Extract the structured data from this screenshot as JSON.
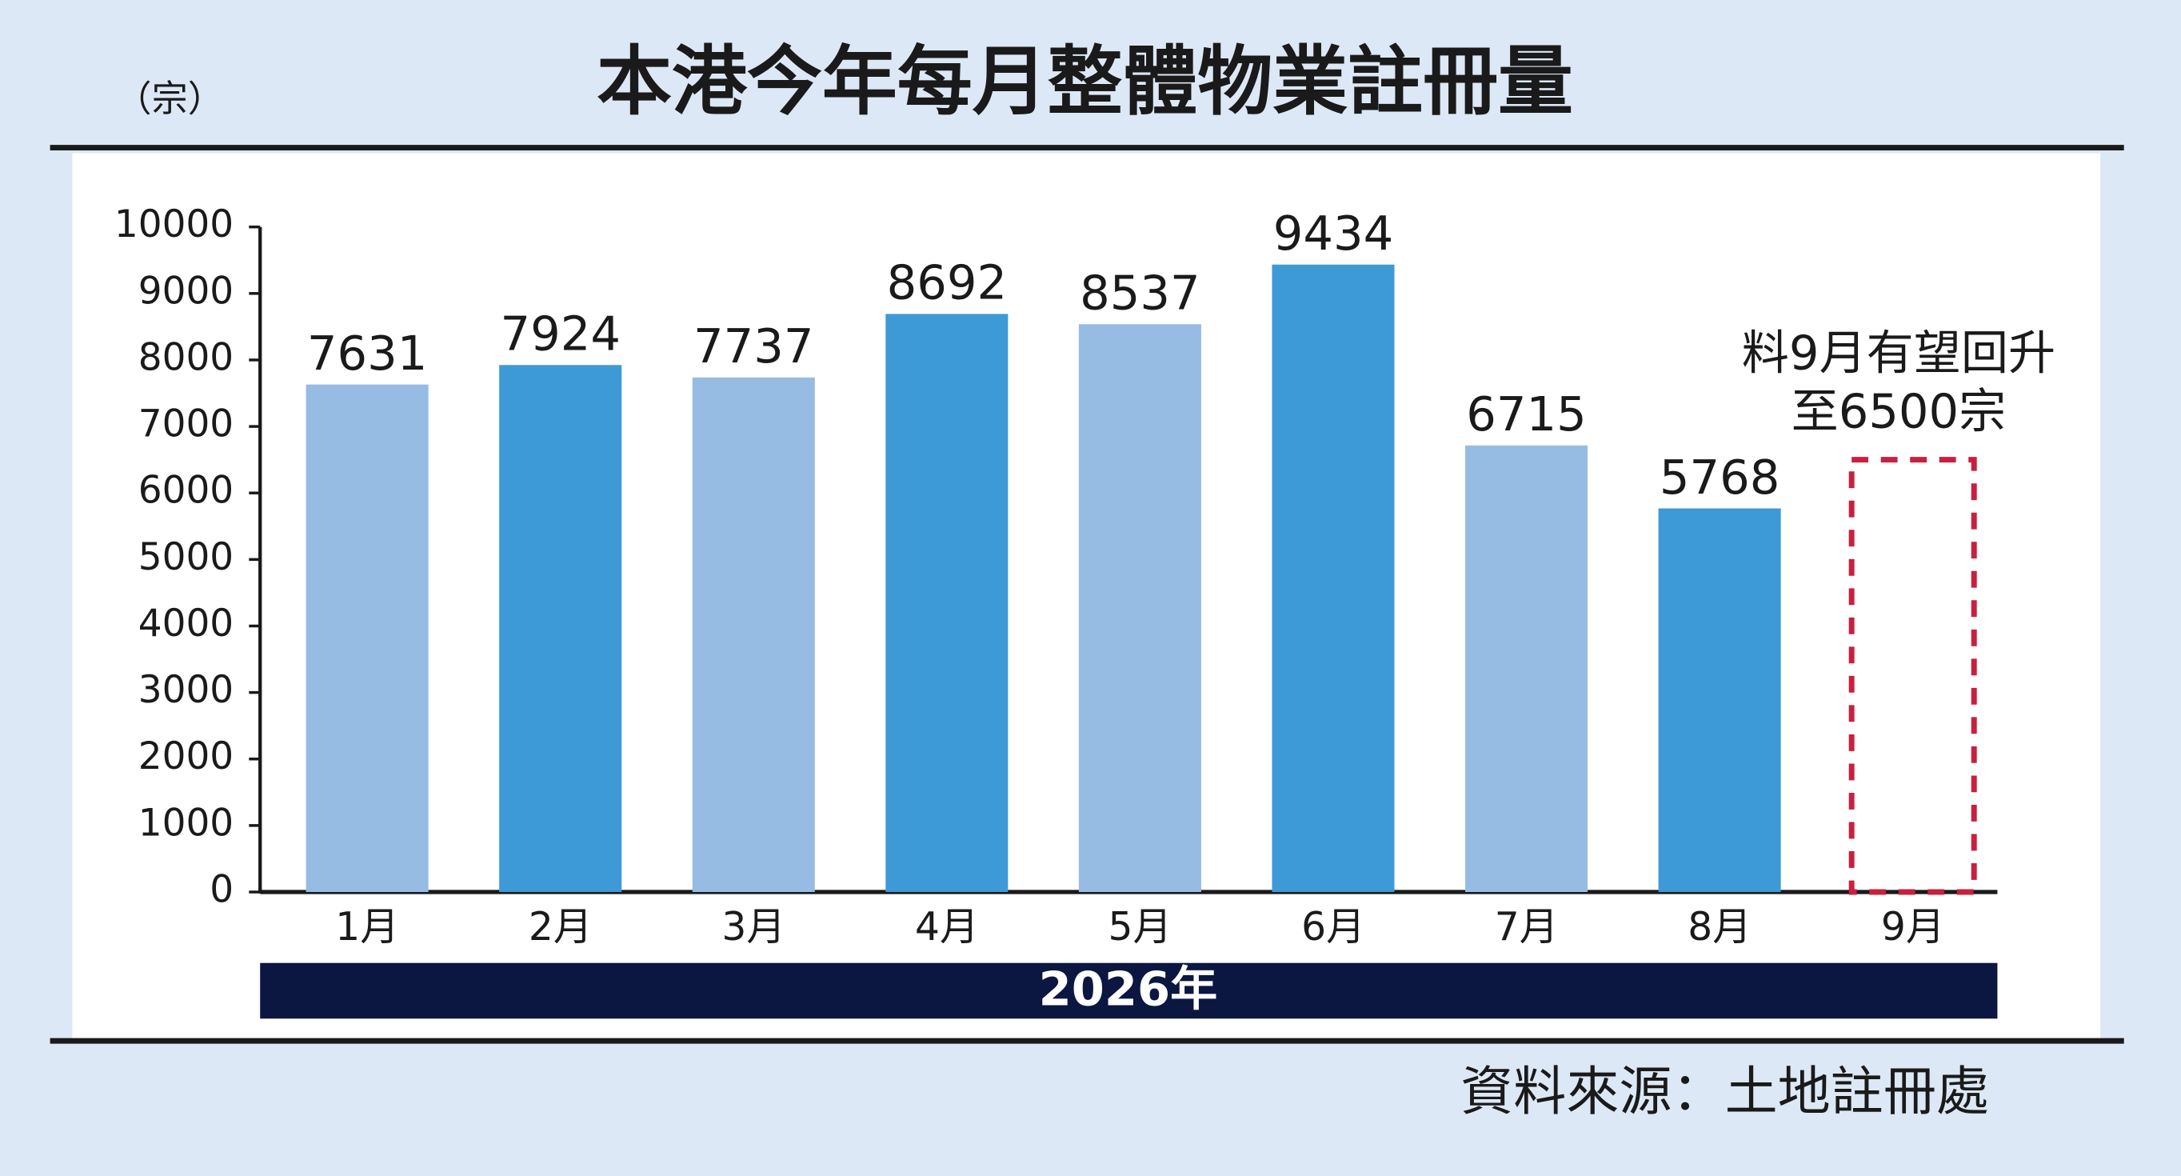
{
  "chart_data": {
    "type": "bar",
    "title": "本港今年每月整體物業註冊量",
    "ylabel": "（宗）",
    "xlabel": "2026年",
    "source": "資料來源：土地註冊處",
    "annotation": [
      "料9月有望回升",
      "至6500宗"
    ],
    "categories": [
      "1月",
      "2月",
      "3月",
      "4月",
      "5月",
      "6月",
      "7月",
      "8月",
      "9月"
    ],
    "values": [
      7631,
      7924,
      7737,
      8692,
      8537,
      9434,
      6715,
      5768,
      null
    ],
    "forecast_values": [
      null,
      null,
      null,
      null,
      null,
      null,
      null,
      null,
      6500
    ],
    "colors": [
      "#96bce4",
      "#3d9ad6",
      "#96bce4",
      "#3d9ad6",
      "#96bce4",
      "#3d9ad6",
      "#96bce4",
      "#3d9ad6",
      "#96bce4"
    ],
    "forecast_color": "#c8203e",
    "ylim": [
      0,
      10000
    ],
    "yticks": [
      0,
      1000,
      2000,
      3000,
      4000,
      5000,
      6000,
      7000,
      8000,
      9000,
      10000
    ]
  }
}
